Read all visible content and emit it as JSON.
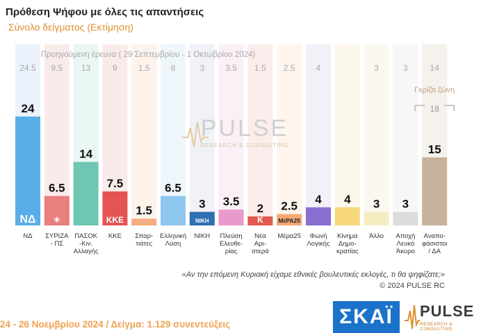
{
  "header": {
    "title": "Πρόθεση Ψήφου με όλες τις απαντήσεις",
    "subtitle": "Σύνολο δείγματος   (Εκτίμηση)"
  },
  "chart_data": {
    "type": "bar",
    "previous_label": "Προηγούμενη έρευνα ( 29 Σεπτεμβρίου - 1 Οκτωβρίου 2024)",
    "categories": [
      "ΝΔ",
      "ΣΥΡΙΖΑ - ΠΣ",
      "ΠΑΣΟΚ -Κιν. Αλλαγής",
      "ΚΚΕ",
      "Σπαρ- τιάτες",
      "Ελληνική Λύση",
      "ΝΙΚΗ",
      "Πλεύση Ελευθε- ρίας",
      "Νέα Αρι- στερά",
      "Μέρα25",
      "Φωνή Λογικής",
      "Κίνημα Δημο- κρατίας",
      "Άλλο",
      "Αποχή Λευκό Άκυρο",
      "Αναπο- φάσιστοι / ΔΑ"
    ],
    "values": [
      24,
      6.5,
      14,
      7.5,
      1.5,
      6.5,
      3,
      3.5,
      2,
      2.5,
      4,
      4,
      3,
      3,
      15
    ],
    "value_labels": [
      "24",
      "6.5",
      "14",
      "7.5",
      "1.5",
      "6.5",
      "3",
      "3.5",
      "2",
      "2.5",
      "4",
      "4",
      "3",
      "3",
      "15"
    ],
    "previous": [
      "24.5",
      "9.5",
      "13",
      "9",
      "1.5",
      "8",
      "3",
      "3.5",
      "1.5",
      "2.5",
      "4",
      "",
      "3",
      "3",
      "14"
    ],
    "colors": [
      "#5aaee8",
      "#ea7f7f",
      "#6fc6b2",
      "#e45454",
      "#f4ac82",
      "#8fc6ee",
      "#2f6fb4",
      "#e89acd",
      "#e25a4e",
      "#f6a874",
      "#8a6fd0",
      "#f6d77a",
      "#f5ecc2",
      "#dcdcdc",
      "#c9b29b"
    ],
    "column_tints": [
      "#dbe7f7",
      "#f6dada",
      "#d9efe9",
      "#f6dada",
      "#fbeadf",
      "#e1eef8",
      "#e3e8f2",
      "#f7e3ef",
      "#f8dedb",
      "#fdeee0",
      "#e9e3f5",
      "#fbf3dc",
      "#f7f3e6",
      "#f1f1f1",
      "#ede5dc"
    ],
    "logos": [
      "ΝΔ",
      "✶",
      "",
      "ΚΚΕ",
      "",
      "",
      "ΝΙΚΗ",
      "",
      "K",
      "ΜέΡΑ25",
      "",
      "",
      "",
      "",
      ""
    ],
    "gray_zone_label": "Γκρίζα ζώνη",
    "gray_zone_value": "18",
    "ylim": [
      0,
      28
    ]
  },
  "watermark": {
    "name": "PULSE",
    "sub": "RESEARCH & CONSULTING"
  },
  "footer": {
    "question": "«Αν την επόμενη Κυριακή είχαμε εθνικές βουλευτικές εκλογές, τι θα ψηφίζατε;»",
    "copyright": "©  2024  PULSE RC",
    "fieldwork": "24 - 26 Νοεμβρίου 2024  /  Δείγμα:  1.129 συνεντεύξεις"
  },
  "brand": {
    "skai": "ΣΚΑΪ",
    "pulse": "PULSE",
    "pulse_sub": "RESEARCH & CONSULTING"
  }
}
